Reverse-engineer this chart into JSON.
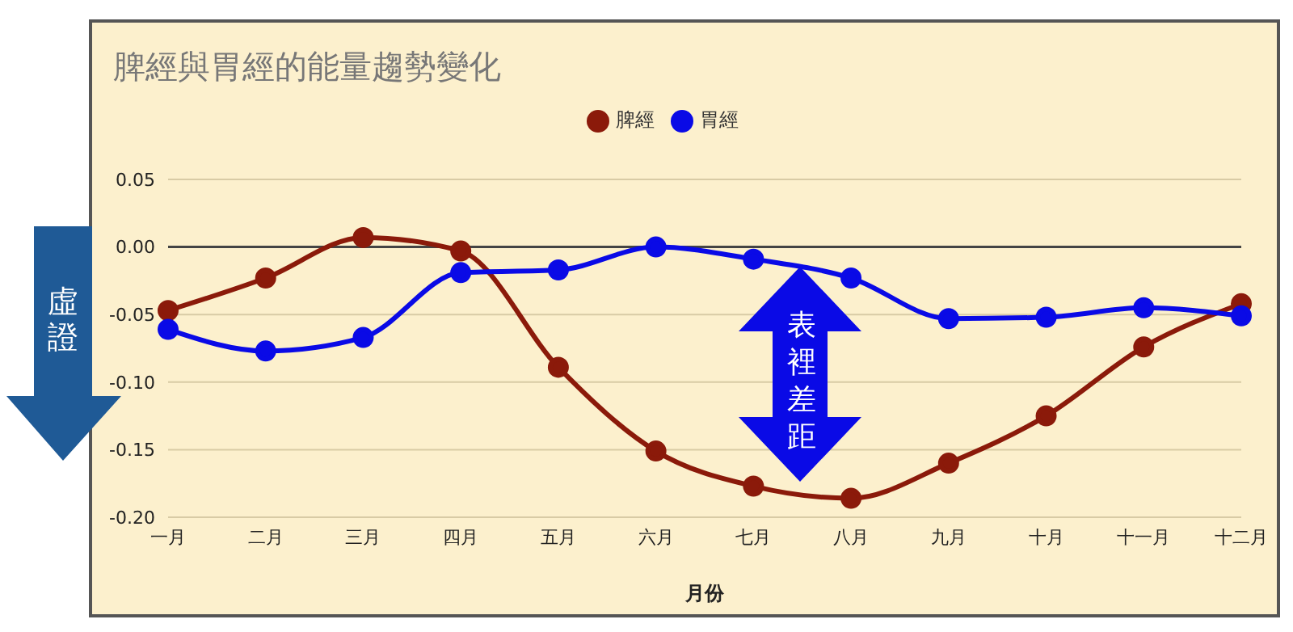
{
  "chart_data": {
    "type": "line",
    "title": "脾經與胃經的能量趨勢變化",
    "xlabel": "月份",
    "categories": [
      "一月",
      "二月",
      "三月",
      "四月",
      "五月",
      "六月",
      "七月",
      "八月",
      "九月",
      "十月",
      "十一月",
      "十二月"
    ],
    "series": [
      {
        "name": "脾經",
        "color": "#8b1a0a",
        "values": [
          -0.047,
          -0.023,
          0.007,
          -0.003,
          -0.089,
          -0.151,
          -0.177,
          -0.186,
          -0.16,
          -0.125,
          -0.074,
          -0.042
        ]
      },
      {
        "name": "胃經",
        "color": "#0a0ae6",
        "values": [
          -0.061,
          -0.077,
          -0.067,
          -0.019,
          -0.017,
          0.0,
          -0.009,
          -0.023,
          -0.053,
          -0.052,
          -0.045,
          -0.051
        ]
      }
    ],
    "ylim": [
      -0.2,
      0.05
    ],
    "yticks": [
      {
        "value": 0.05,
        "label": "0.05"
      },
      {
        "value": 0,
        "label": "0.00"
      },
      {
        "value": -0.05,
        "label": "-0.05"
      },
      {
        "value": -0.1,
        "label": "-0.10"
      },
      {
        "value": -0.15,
        "label": "-0.15"
      },
      {
        "value": -0.2,
        "label": "-0.20"
      }
    ],
    "grid": "y",
    "legend": "top",
    "marker": "circle",
    "line_style": "solid",
    "ref_lines": [
      {
        "axis": "y",
        "value": 0,
        "color": "#444444"
      }
    ],
    "annotations": [
      "虛證",
      "表裡差距"
    ]
  }
}
